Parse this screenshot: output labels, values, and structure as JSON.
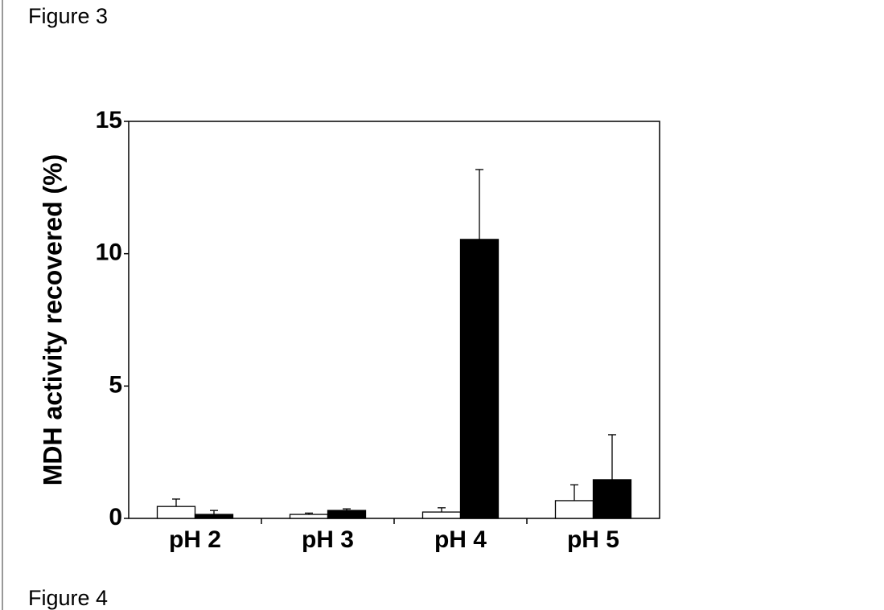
{
  "caption": "Figure 3",
  "chart_data": {
    "type": "bar",
    "ylabel": "MDH activity recovered (%)",
    "categories": [
      "pH 2",
      "pH 3",
      "pH 4",
      "pH 5"
    ],
    "series": [
      {
        "color": "#ffffff",
        "values": [
          0.45,
          0.15,
          0.24,
          0.67
        ],
        "errors": [
          0.28,
          0.05,
          0.16,
          0.6
        ],
        "error_direction": "both"
      },
      {
        "color": "#000000",
        "values": [
          0.15,
          0.3,
          10.54,
          1.46
        ],
        "errors": [
          0.15,
          0.06,
          2.64,
          1.7
        ],
        "error_direction": "up"
      }
    ],
    "ylim": [
      0,
      15
    ],
    "yticks": [
      0,
      5,
      10,
      15
    ],
    "grid": false
  },
  "next_caption": "Figure 4"
}
